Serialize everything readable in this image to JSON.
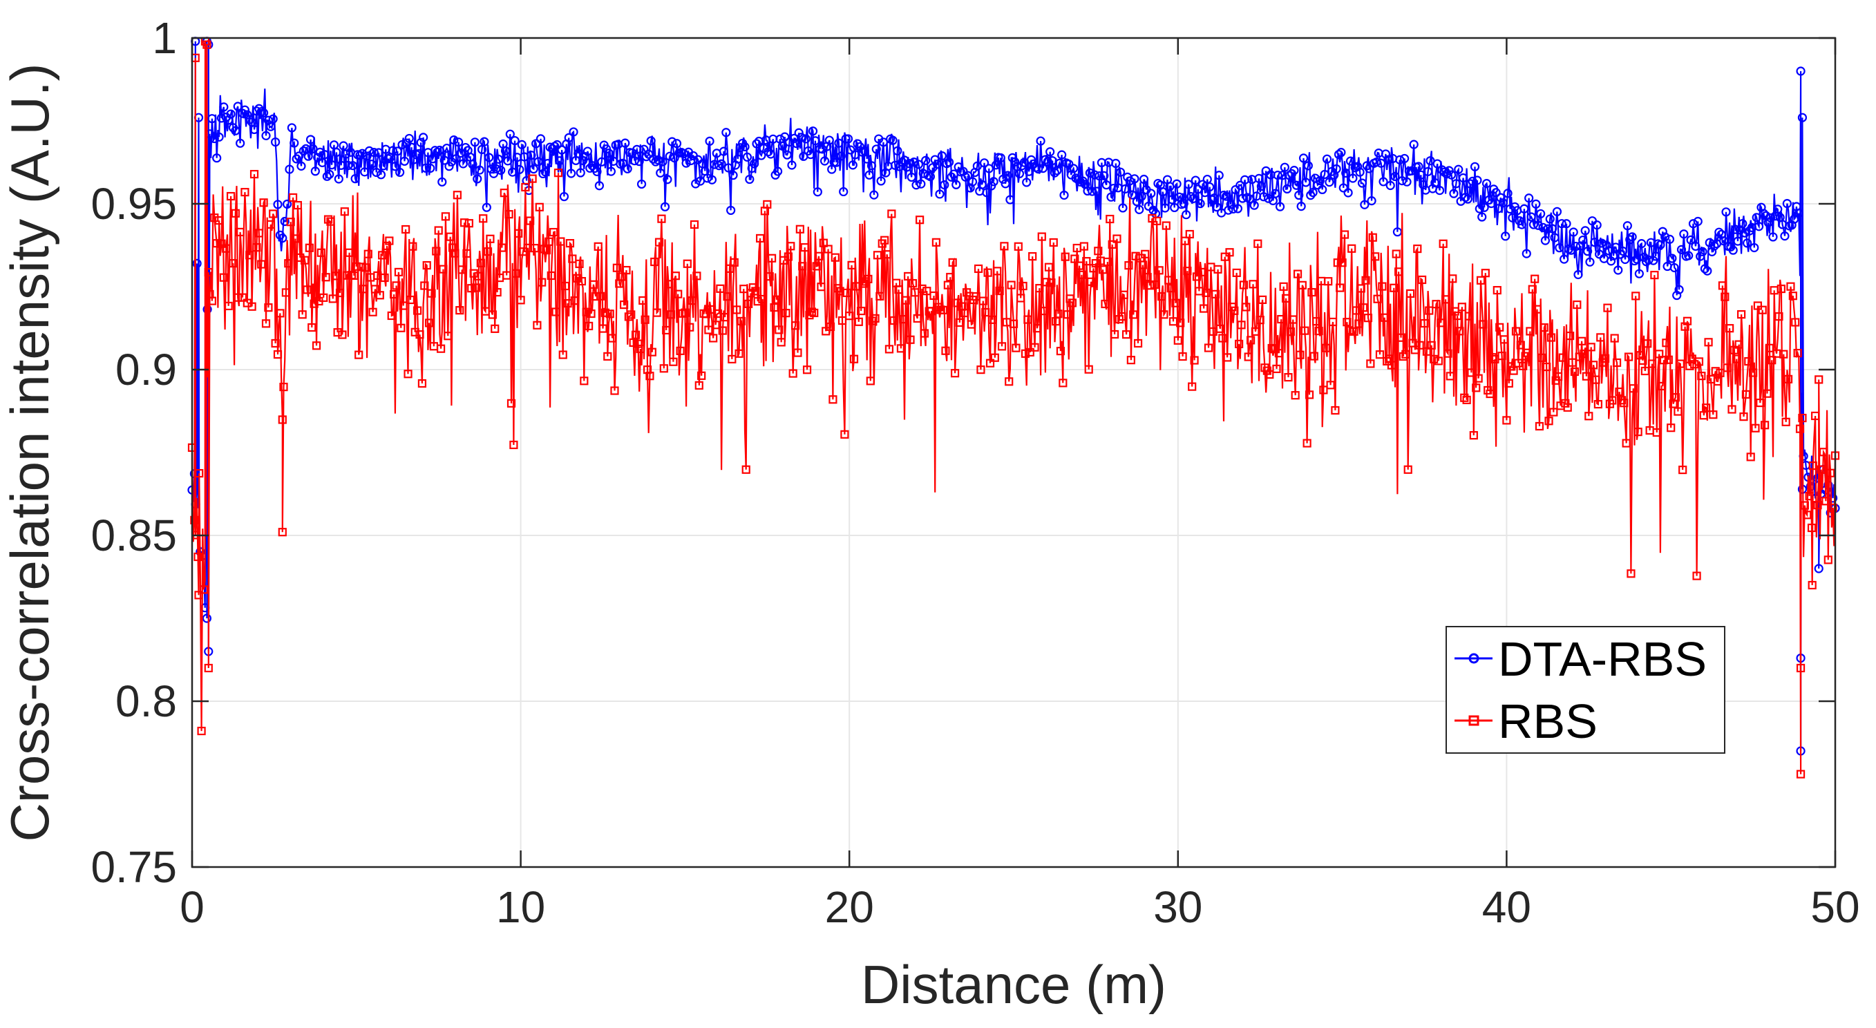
{
  "chart_data": {
    "type": "line",
    "title": "",
    "xlabel": "Distance (m)",
    "ylabel": "Cross-correlation intensity (A.U.)",
    "xlim": [
      0,
      50
    ],
    "ylim": [
      0.75,
      1.0
    ],
    "xticks": [
      0,
      10,
      20,
      30,
      40,
      50
    ],
    "yticks": [
      0.75,
      0.8,
      0.85,
      0.9,
      0.95,
      1
    ],
    "xtick_labels": [
      "0",
      "10",
      "20",
      "30",
      "40",
      "50"
    ],
    "ytick_labels": [
      "0.75",
      "0.8",
      "0.85",
      "0.9",
      "0.95",
      "1"
    ],
    "grid": true,
    "legend_position": "lower-right",
    "series": [
      {
        "name": "DTA-RBS",
        "color": "#0000ff",
        "marker": "circle",
        "profile": [
          [
            0.0,
            0.87
          ],
          [
            0.2,
            0.86
          ],
          [
            0.4,
            0.83
          ],
          [
            0.5,
            0.97
          ],
          [
            1.0,
            0.975
          ],
          [
            2.0,
            0.975
          ],
          [
            2.5,
            0.975
          ],
          [
            2.7,
            0.93
          ],
          [
            3.0,
            0.965
          ],
          [
            5.0,
            0.963
          ],
          [
            7.0,
            0.964
          ],
          [
            10.0,
            0.963
          ],
          [
            13.0,
            0.964
          ],
          [
            16.0,
            0.963
          ],
          [
            18.0,
            0.967
          ],
          [
            20.0,
            0.967
          ],
          [
            22.0,
            0.962
          ],
          [
            24.0,
            0.958
          ],
          [
            26.0,
            0.962
          ],
          [
            28.0,
            0.957
          ],
          [
            30.0,
            0.952
          ],
          [
            32.0,
            0.953
          ],
          [
            34.0,
            0.958
          ],
          [
            36.0,
            0.962
          ],
          [
            38.0,
            0.958
          ],
          [
            40.0,
            0.95
          ],
          [
            42.0,
            0.938
          ],
          [
            44.0,
            0.935
          ],
          [
            46.0,
            0.936
          ],
          [
            48.0,
            0.945
          ],
          [
            48.9,
            0.948
          ],
          [
            49.0,
            0.87
          ],
          [
            50.0,
            0.865
          ]
        ],
        "noise": 0.006,
        "outliers": [
          [
            0.1,
            0.999
          ],
          [
            0.15,
            0.932
          ],
          [
            0.2,
            0.976
          ],
          [
            0.45,
            0.999
          ],
          [
            0.5,
            0.998
          ],
          [
            48.95,
            0.99
          ],
          [
            48.95,
            0.785
          ],
          [
            48.95,
            0.813
          ],
          [
            49.0,
            0.976
          ],
          [
            49.5,
            0.84
          ],
          [
            0.5,
            0.815
          ],
          [
            0.45,
            0.825
          ]
        ]
      },
      {
        "name": "RBS",
        "color": "#ff0000",
        "marker": "square",
        "profile": [
          [
            0.0,
            0.86
          ],
          [
            0.2,
            0.85
          ],
          [
            0.4,
            0.82
          ],
          [
            0.5,
            0.93
          ],
          [
            1.0,
            0.94
          ],
          [
            2.0,
            0.94
          ],
          [
            2.5,
            0.94
          ],
          [
            2.7,
            0.89
          ],
          [
            3.0,
            0.935
          ],
          [
            5.0,
            0.93
          ],
          [
            7.0,
            0.925
          ],
          [
            10.0,
            0.935
          ],
          [
            13.0,
            0.92
          ],
          [
            16.0,
            0.915
          ],
          [
            18.0,
            0.925
          ],
          [
            20.0,
            0.928
          ],
          [
            22.0,
            0.922
          ],
          [
            24.0,
            0.918
          ],
          [
            26.0,
            0.92
          ],
          [
            28.0,
            0.92
          ],
          [
            30.0,
            0.925
          ],
          [
            32.0,
            0.915
          ],
          [
            34.0,
            0.915
          ],
          [
            36.0,
            0.92
          ],
          [
            38.0,
            0.915
          ],
          [
            40.0,
            0.905
          ],
          [
            42.0,
            0.9
          ],
          [
            44.0,
            0.9
          ],
          [
            46.0,
            0.9
          ],
          [
            48.0,
            0.905
          ],
          [
            48.9,
            0.91
          ],
          [
            49.0,
            0.865
          ],
          [
            50.0,
            0.865
          ]
        ],
        "noise": 0.02,
        "outliers": [
          [
            0.1,
            0.994
          ],
          [
            0.2,
            0.832
          ],
          [
            0.4,
            0.999
          ],
          [
            0.45,
            0.998
          ],
          [
            0.5,
            0.81
          ],
          [
            2.75,
            0.851
          ],
          [
            48.95,
            0.778
          ],
          [
            48.95,
            0.81
          ],
          [
            49.5,
            0.897
          ],
          [
            49.3,
            0.835
          ]
        ]
      }
    ]
  }
}
